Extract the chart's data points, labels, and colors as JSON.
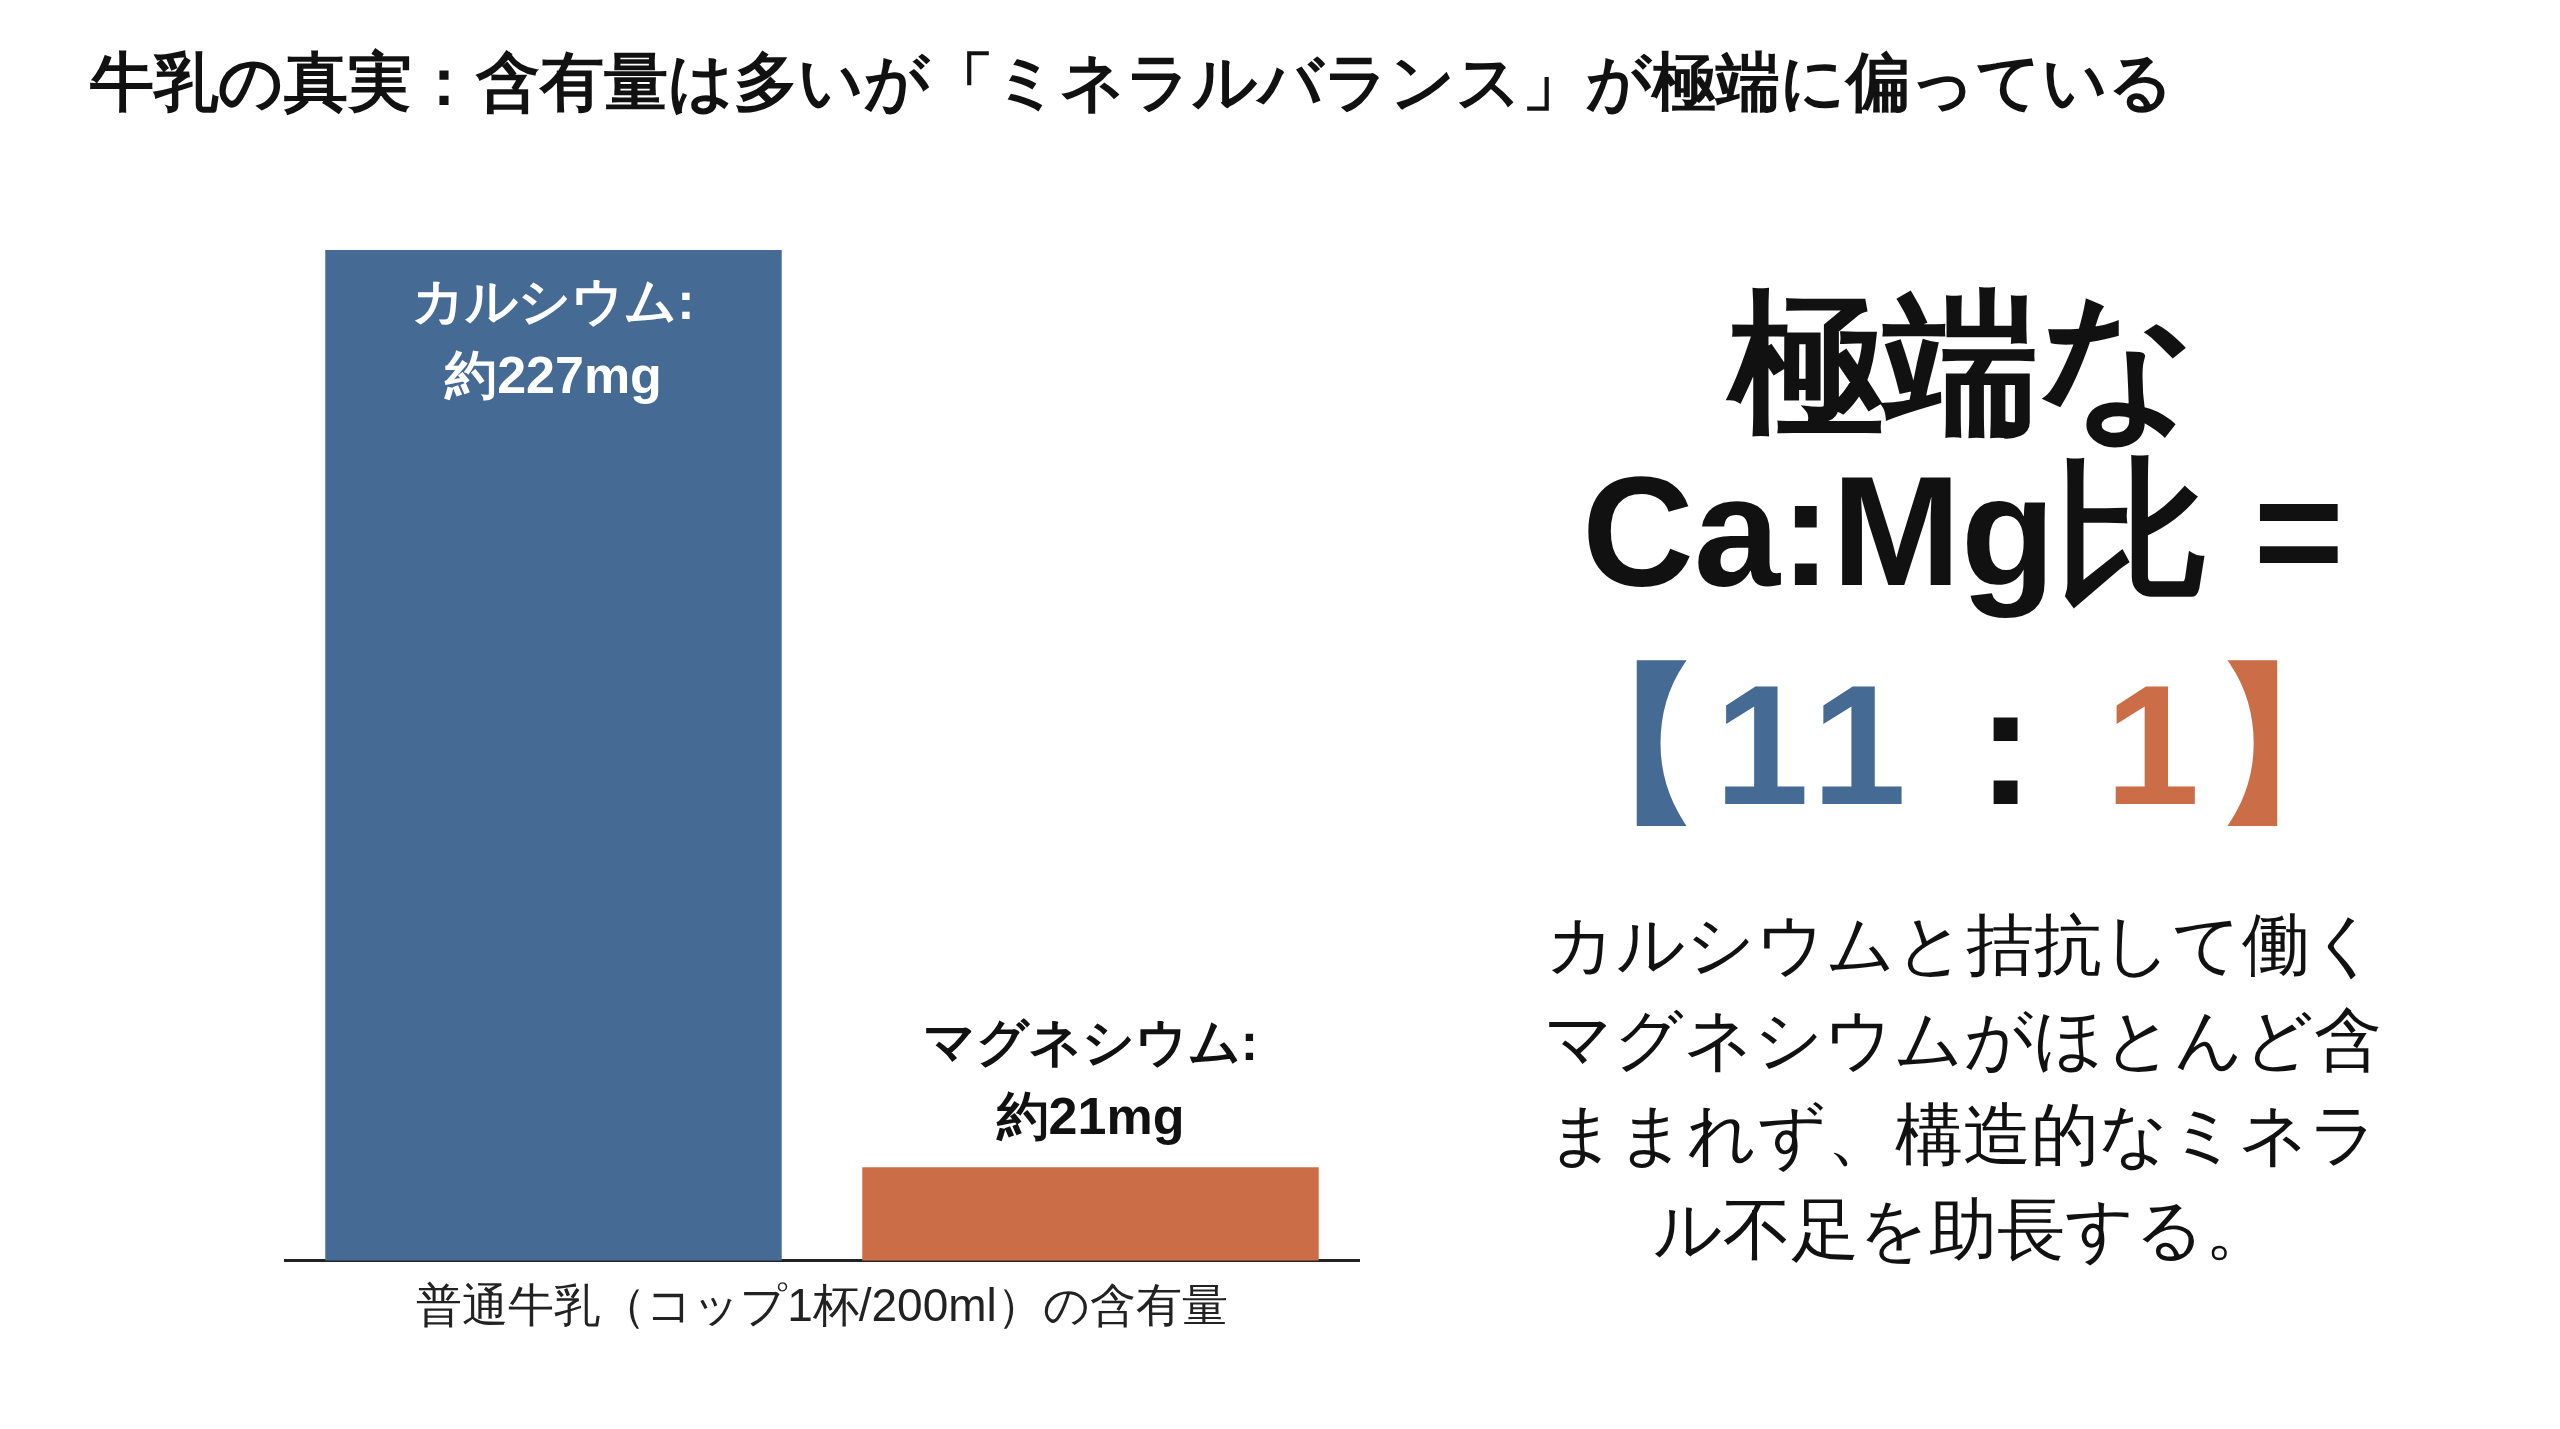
{
  "chart_data": {
    "type": "bar",
    "title": "牛乳の真実：含有量は多いが「ミネラルバランス」が極端に偏っている",
    "xlabel": "普通牛乳（コップ1杯/200ml）の含有量",
    "categories": [
      null,
      null
    ],
    "values": [
      227,
      21
    ],
    "colors": [
      "#456a94",
      "#cb6e48"
    ],
    "value_labels": [
      "カルシウム: 約227mg",
      "マグネシウム: 約21mg"
    ],
    "tick_labels": false,
    "annotations": [
      "極端な Ca:Mg比 =",
      "【11 : 1】",
      "カルシウムと拮抗して働くマグネシウムがほとんど含ままれず、構造的なミネラル不足を助長する。"
    ]
  }
}
